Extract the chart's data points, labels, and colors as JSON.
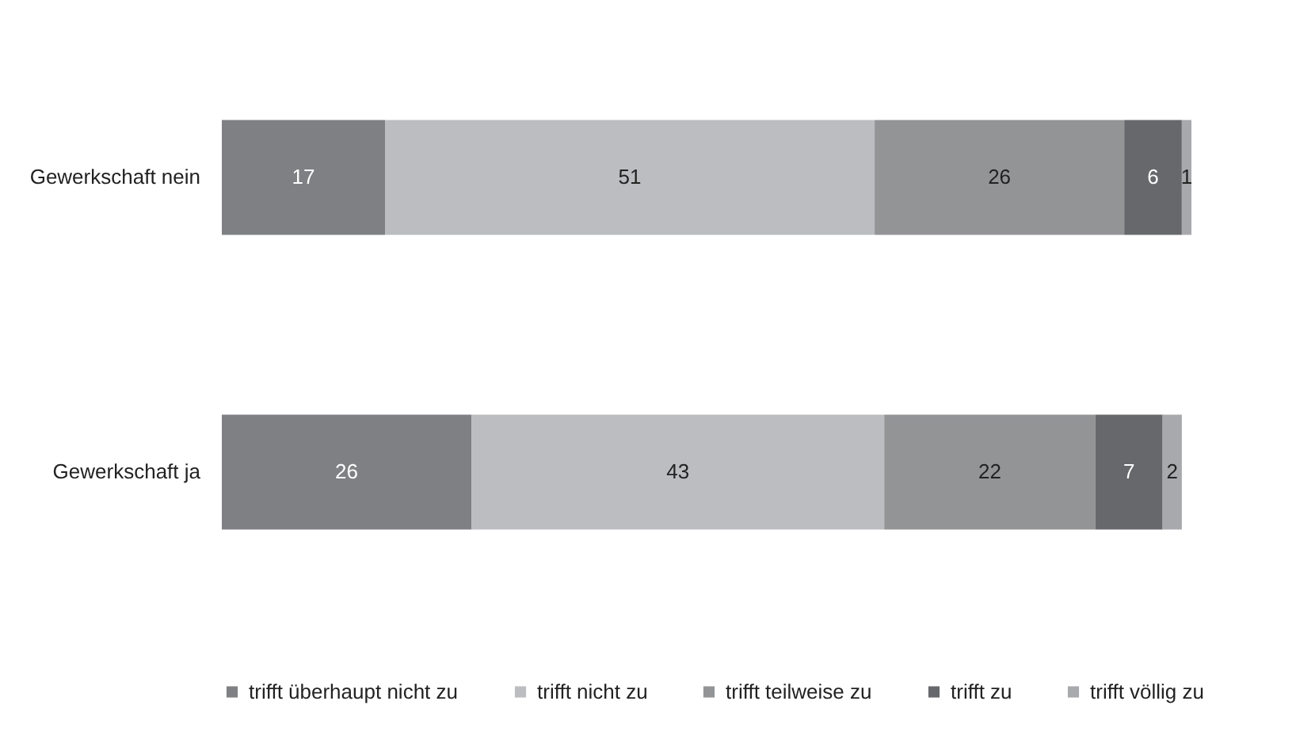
{
  "chart_data": {
    "type": "bar",
    "orientation": "horizontal",
    "stacked": true,
    "data_labels": true,
    "legend": "bottom",
    "categories": [
      "Gewerkschaft nein",
      "Gewerkschaft ja"
    ],
    "series": [
      {
        "name": "trifft überhaupt nicht zu",
        "color": "#7f8083",
        "values": [
          17,
          26
        ]
      },
      {
        "name": "trifft nicht zu",
        "color": "#bcbdc0",
        "values": [
          51,
          43
        ]
      },
      {
        "name": "trifft teilweise zu",
        "color": "#939496",
        "values": [
          26,
          22
        ]
      },
      {
        "name": "trifft zu",
        "color": "#67686b",
        "values": [
          6,
          7
        ]
      },
      {
        "name": "trifft völlig zu",
        "color": "#a8a9ac",
        "values": [
          1,
          2
        ]
      }
    ]
  }
}
